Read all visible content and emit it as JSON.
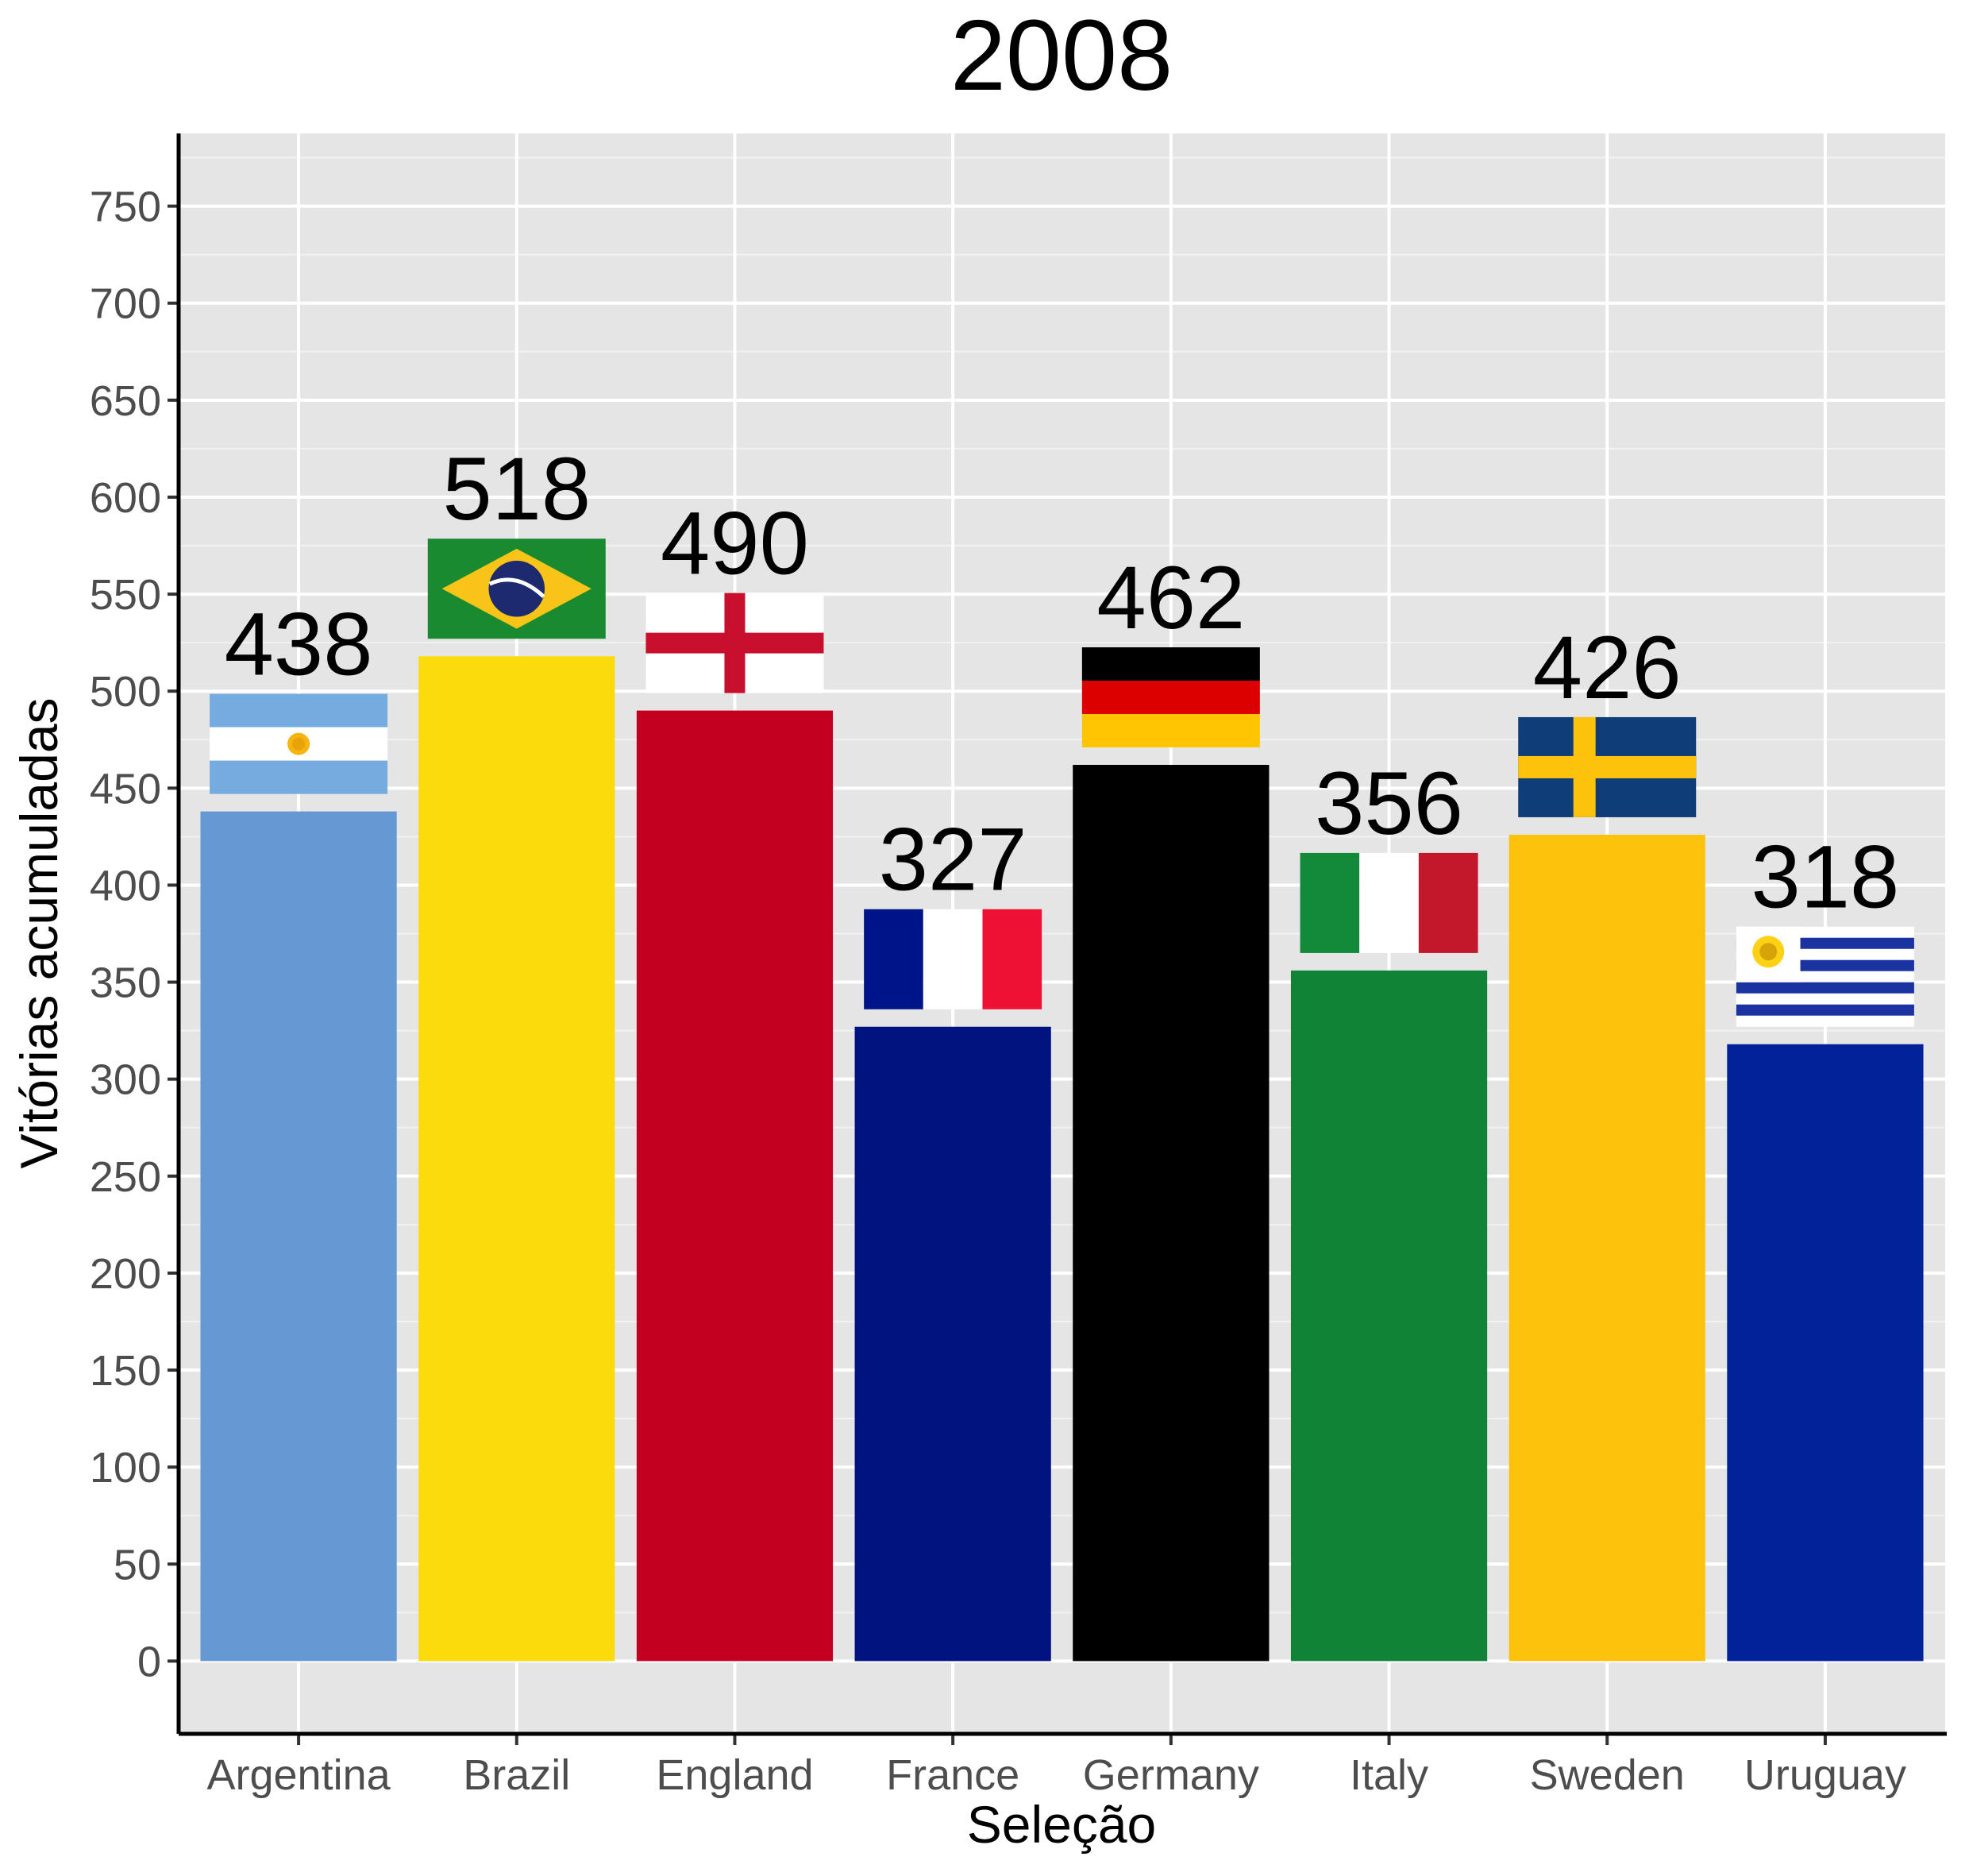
{
  "chart_data": {
    "type": "bar",
    "title": "2008",
    "xlabel": "Seleção",
    "ylabel": "Vitórias acumuladas",
    "categories": [
      "Argentina",
      "Brazil",
      "England",
      "France",
      "Germany",
      "Italy",
      "Sweden",
      "Uruguay"
    ],
    "values": [
      438,
      518,
      490,
      327,
      462,
      356,
      426,
      318
    ],
    "value_labels": [
      "438",
      "518",
      "490",
      "327",
      "462",
      "356",
      "426",
      "318"
    ],
    "bar_colors": [
      "#6699d3",
      "#fcdb0c",
      "#c3001f",
      "#00137f",
      "#000000",
      "#118337",
      "#fcc20c",
      "#02229a"
    ],
    "flags": [
      "argentina-flag",
      "brazil-flag",
      "england-flag",
      "france-flag",
      "germany-flag",
      "italy-flag",
      "sweden-flag",
      "uruguay-flag"
    ],
    "ylim": [
      -37.5,
      787.5
    ],
    "yticks": [
      0,
      50,
      100,
      150,
      200,
      250,
      300,
      350,
      400,
      450,
      500,
      550,
      600,
      650,
      700,
      750
    ],
    "grid": true,
    "legend": "none",
    "panel_background": "#e5e5e5"
  }
}
